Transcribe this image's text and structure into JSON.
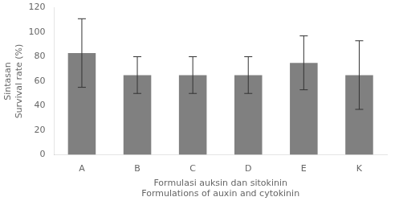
{
  "chart_data": {
    "type": "bar",
    "categories": [
      "A",
      "B",
      "C",
      "D",
      "E",
      "K"
    ],
    "values": [
      83,
      65,
      65,
      65,
      75,
      65
    ],
    "errors": [
      28,
      15,
      15,
      15,
      22,
      28
    ],
    "color": "#808080",
    "xlabel": [
      "Formulasi auksin dan sitokinin",
      "Formulations of auxin and cytokinin"
    ],
    "ylabel": [
      "Sintasan",
      "Survival rate (%)"
    ],
    "ylim": [
      0,
      120
    ],
    "yticks": [
      0,
      20,
      40,
      60,
      80,
      100,
      120
    ],
    "grid": false
  }
}
